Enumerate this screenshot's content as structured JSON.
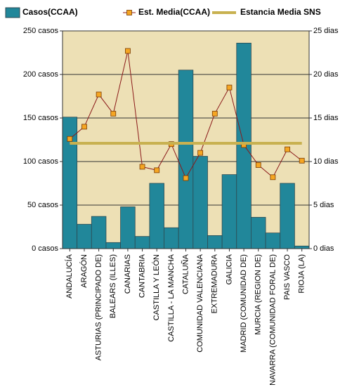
{
  "chart_data": {
    "type": "bar_line",
    "legend": "top",
    "categories": [
      "ANDALUCÍA",
      "ARAGÓN",
      "ASTURIAS (PRINCIPADO DE)",
      "BALEARS (ILLES)",
      "CANARIAS",
      "CANTABRIA",
      "CASTILLA Y LEÓN",
      "CASTILLA - LA MANCHA",
      "CATALUÑA",
      "COMUNIDAD VALENCIANA",
      "EXTREMADURA",
      "GALICIA",
      "MADRID (COMUNIDAD DE)",
      "MURCIA (REGION DE)",
      "NAVARRA (COMUNIDAD FORAL DE)",
      "PAIS VASCO",
      "RIOJA (LA)"
    ],
    "series": [
      {
        "name": "Casos(CCAA)",
        "type": "bar",
        "axis": "y",
        "color": "#21879a",
        "values": [
          151,
          28,
          37,
          7,
          48,
          14,
          75,
          24,
          205,
          106,
          15,
          85,
          236,
          36,
          18,
          75,
          3
        ]
      },
      {
        "name": "Est. Media(CCAA)",
        "type": "line",
        "axis": "y2",
        "color": "#8b1a1a",
        "marker_color": "#f5a623",
        "values": [
          12.6,
          14.0,
          17.7,
          15.5,
          22.7,
          9.4,
          9.0,
          12.0,
          8.1,
          11.0,
          15.5,
          18.5,
          11.9,
          9.6,
          8.2,
          11.4,
          10.1
        ]
      },
      {
        "name": "Estancia Media SNS",
        "type": "line",
        "axis": "y2",
        "color": "#c8b150",
        "values": [
          12.1,
          12.1,
          12.1,
          12.1,
          12.1,
          12.1,
          12.1,
          12.1,
          12.1,
          12.1,
          12.1,
          12.1,
          12.1,
          12.1,
          12.1,
          12.1,
          12.1
        ]
      }
    ],
    "ylim": [
      0,
      250
    ],
    "yticks": [
      {
        "value": 0,
        "label": "0 casos"
      },
      {
        "value": 50,
        "label": "50 casos"
      },
      {
        "value": 100,
        "label": "100 casos"
      },
      {
        "value": 150,
        "label": "150 casos"
      },
      {
        "value": 200,
        "label": "200 casos"
      },
      {
        "value": 250,
        "label": "250 casos"
      }
    ],
    "y2lim": [
      0,
      25
    ],
    "y2ticks": [
      {
        "value": 0,
        "label": "0 dias"
      },
      {
        "value": 5,
        "label": "5 dias"
      },
      {
        "value": 10,
        "label": "10 dias"
      },
      {
        "value": 15,
        "label": "15 dias"
      },
      {
        "value": 20,
        "label": "20 dias"
      },
      {
        "value": 25,
        "label": "25 dias"
      }
    ],
    "grid": true,
    "plot_background": "#ede0b5"
  }
}
